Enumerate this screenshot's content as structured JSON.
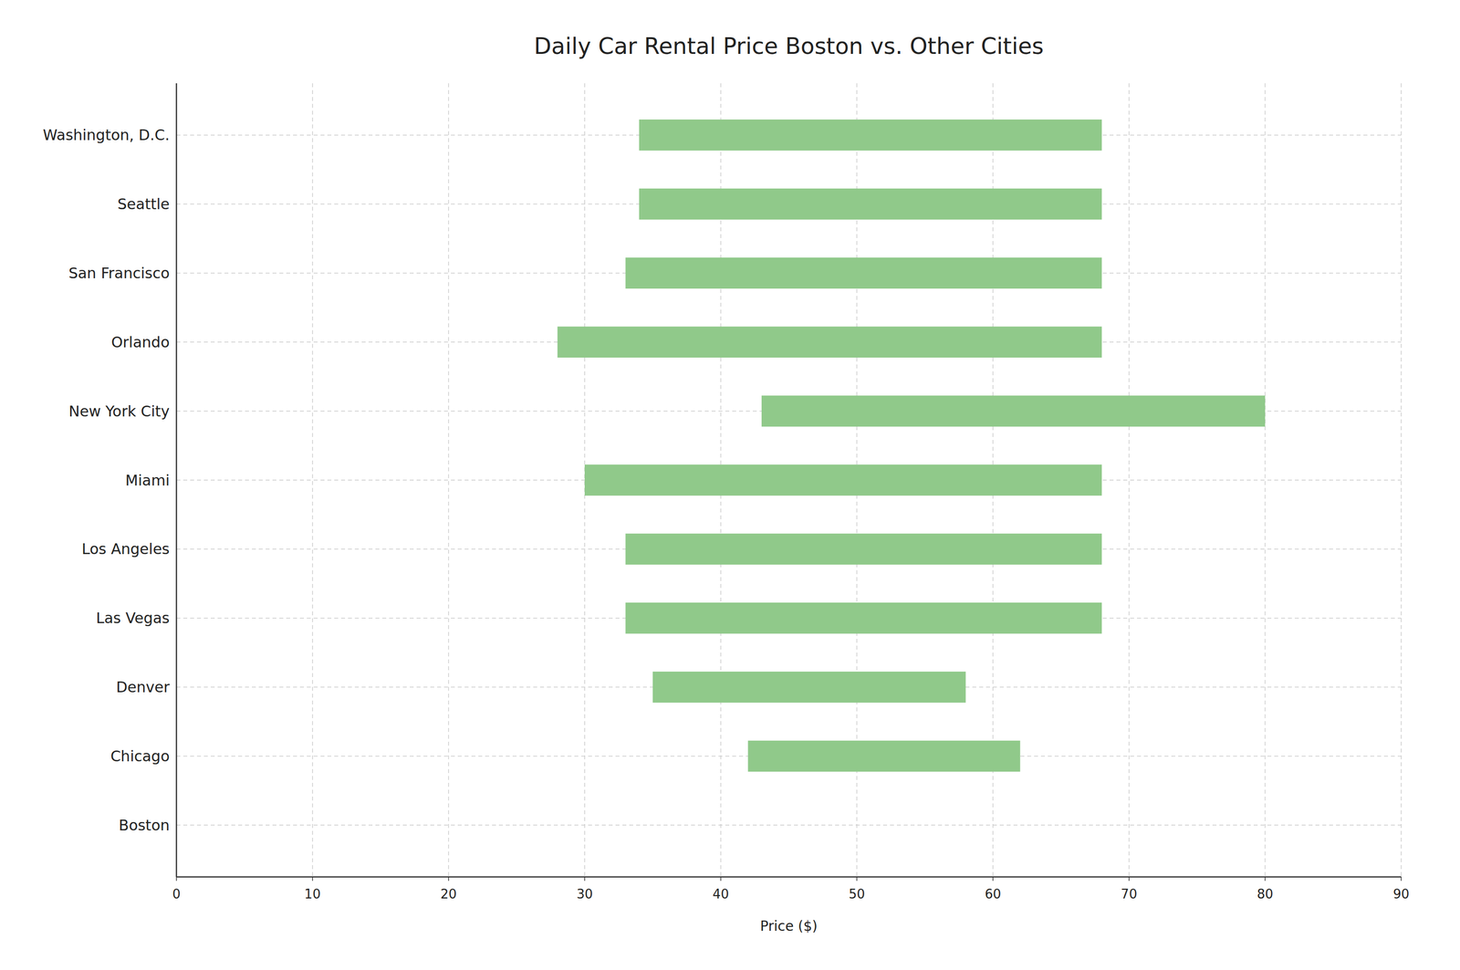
{
  "chart_data": {
    "type": "bar",
    "orientation": "horizontal",
    "title": "Daily Car Rental Price Boston vs. Other Cities",
    "xlabel": "Price ($)",
    "categories": [
      "Boston",
      "Chicago",
      "Denver",
      "Las Vegas",
      "Los Angeles",
      "Miami",
      "New York City",
      "Orlando",
      "San Francisco",
      "Seattle",
      "Washington, D.C."
    ],
    "starts": [
      0,
      42,
      35,
      33,
      33,
      30,
      43,
      28,
      33,
      34,
      34
    ],
    "values": [
      0,
      62,
      58,
      68,
      68,
      68,
      80,
      68,
      68,
      68,
      68
    ],
    "color": "#90c98a",
    "xlim": [
      0,
      90
    ],
    "xticks": [
      0,
      10,
      20,
      30,
      40,
      50,
      60,
      70,
      80,
      90
    ],
    "grid": true
  }
}
